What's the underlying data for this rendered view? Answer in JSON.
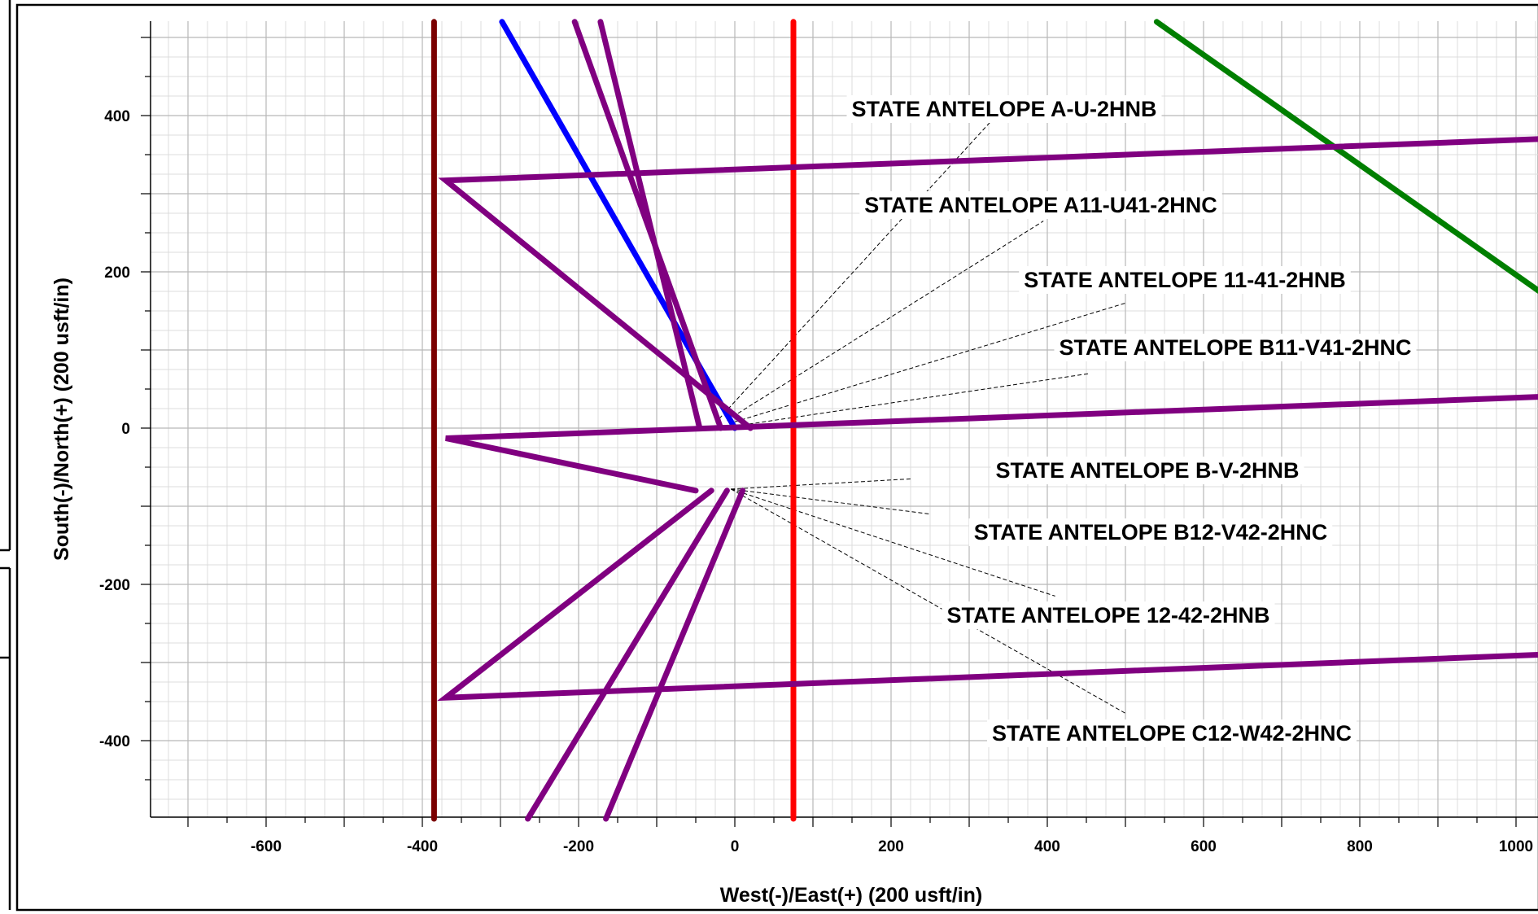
{
  "chart_data": {
    "type": "line",
    "title": "",
    "xlabel": "West(-)/East(+) (200 usft/in)",
    "ylabel": "South(-)/North(+) (200 usft/in)",
    "xlim": [
      -750,
      1030
    ],
    "ylim": [
      -500,
      520
    ],
    "grid": true,
    "xticks": [
      -600,
      -400,
      -200,
      0,
      200,
      400,
      600,
      800,
      1000
    ],
    "yticks": [
      400,
      200,
      0,
      -200,
      -400
    ],
    "xtick_labels": [
      "-600",
      "-400",
      "-200",
      "0",
      "200",
      "400",
      "600",
      "800",
      "1000"
    ],
    "ytick_labels": [
      "400",
      "200",
      "0",
      "-200",
      "-400"
    ],
    "series": [
      {
        "color": "#7a0000",
        "x": [
          -385,
          -385
        ],
        "y": [
          520,
          -500
        ]
      },
      {
        "color": "#ff0000",
        "x": [
          75,
          75
        ],
        "y": [
          520,
          -500
        ]
      },
      {
        "color": "#007f00",
        "x": [
          540,
          1030
        ],
        "y": [
          520,
          175
        ]
      },
      {
        "color": "#0000ff",
        "x": [
          0,
          -298
        ],
        "y": [
          0,
          520
        ]
      },
      {
        "color": "#800080",
        "x": [
          -18,
          -205
        ],
        "y": [
          0,
          520
        ]
      },
      {
        "color": "#800080",
        "x": [
          -45,
          -172
        ],
        "y": [
          0,
          520
        ]
      },
      {
        "color": "#800080",
        "x": [
          20,
          -370,
          1030
        ],
        "y": [
          0,
          317,
          370
        ]
      },
      {
        "color": "#800080",
        "x": [
          -50,
          -370,
          1030
        ],
        "y": [
          -80,
          -13,
          40
        ]
      },
      {
        "color": "#800080",
        "x": [
          -30,
          -370,
          1030
        ],
        "y": [
          -80,
          -345,
          -290
        ]
      },
      {
        "color": "#800080",
        "x": [
          -10,
          -265
        ],
        "y": [
          -80,
          -500
        ]
      },
      {
        "color": "#800080",
        "x": [
          10,
          -165
        ],
        "y": [
          -80,
          -500
        ]
      }
    ],
    "annotations": [
      {
        "text": "STATE ANTELOPE A-U-2HNB",
        "leader_from": [
          -20,
          12
        ],
        "leader_to": [
          330,
          395
        ]
      },
      {
        "text": "STATE ANTELOPE A11-U41-2HNC",
        "leader_from": [
          -10,
          10
        ],
        "leader_to": [
          395,
          265
        ]
      },
      {
        "text": "STATE ANTELOPE 11-41-2HNB",
        "leader_from": [
          0,
          8
        ],
        "leader_to": [
          500,
          160
        ]
      },
      {
        "text": "STATE ANTELOPE B11-V41-2HNC",
        "leader_from": [
          10,
          4
        ],
        "leader_to": [
          455,
          70
        ]
      },
      {
        "text": "STATE ANTELOPE B-V-2HNB",
        "leader_from": [
          -5,
          -78
        ],
        "leader_to": [
          225,
          -65
        ]
      },
      {
        "text": "STATE ANTELOPE B12-V42-2HNC",
        "leader_from": [
          -5,
          -78
        ],
        "leader_to": [
          250,
          -110
        ]
      },
      {
        "text": "STATE ANTELOPE 12-42-2HNB",
        "leader_from": [
          -5,
          -78
        ],
        "leader_to": [
          410,
          -215
        ]
      },
      {
        "text": "STATE ANTELOPE C12-W42-2HNC",
        "leader_from": [
          -5,
          -78
        ],
        "leader_to": [
          500,
          -365
        ]
      }
    ]
  }
}
